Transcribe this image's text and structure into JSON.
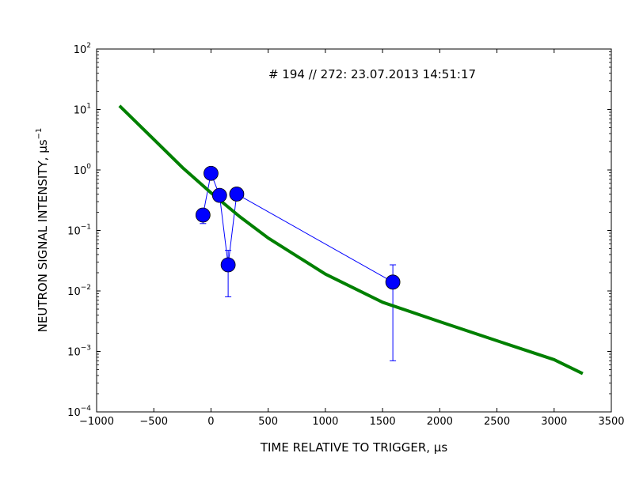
{
  "chart_data": {
    "type": "scatter",
    "title": "# 194 // 272: 23.07.2013 14:51:17",
    "xlabel": "TIME RELATIVE TO TRIGGER, μs",
    "ylabel_main": "NEUTRON SIGNAL INTENSITY, μs",
    "ylabel_exp": "−1",
    "xlim": [
      -1000,
      3500
    ],
    "ylim": [
      0.0001,
      100
    ],
    "yscale": "log",
    "grid": false,
    "x_ticks": [
      -1000,
      -500,
      0,
      500,
      1000,
      1500,
      2000,
      2500,
      3000,
      3500
    ],
    "x_tick_labels": [
      "−1000",
      "−500",
      "0",
      "500",
      "1000",
      "1500",
      "2000",
      "2500",
      "3000",
      "3500"
    ],
    "y_ticks": [
      {
        "value": 0.0001,
        "base": "10",
        "exp": "−4"
      },
      {
        "value": 0.001,
        "base": "10",
        "exp": "−3"
      },
      {
        "value": 0.01,
        "base": "10",
        "exp": "−2"
      },
      {
        "value": 0.1,
        "base": "10",
        "exp": "−1"
      },
      {
        "value": 1,
        "base": "10",
        "exp": "0"
      },
      {
        "value": 10,
        "base": "10",
        "exp": "1"
      },
      {
        "value": 100,
        "base": "10",
        "exp": "2"
      }
    ],
    "series": [
      {
        "kind": "measured",
        "color": "#0000ff",
        "points": [
          {
            "x": -70,
            "y": 0.18,
            "yerr_low": 0.13,
            "yerr_high": 0.18
          },
          {
            "x": 0,
            "y": 0.88,
            "yerr_low": 0.88,
            "yerr_high": 0.88
          },
          {
            "x": 75,
            "y": 0.38,
            "yerr_low": 0.38,
            "yerr_high": 0.38
          },
          {
            "x": 150,
            "y": 0.027,
            "yerr_low": 0.008,
            "yerr_high": 0.047
          },
          {
            "x": 225,
            "y": 0.4,
            "yerr_low": 0.4,
            "yerr_high": 0.4
          },
          {
            "x": 1590,
            "y": 0.014,
            "yerr_low": 0.0007,
            "yerr_high": 0.027
          }
        ]
      },
      {
        "kind": "fit",
        "color": "#008000",
        "x": [
          -800,
          -500,
          -250,
          0,
          250,
          500,
          1000,
          1500,
          2000,
          2500,
          3000,
          3250
        ],
        "y": [
          11.5,
          3.2,
          1.1,
          0.42,
          0.17,
          0.075,
          0.019,
          0.0065,
          0.0031,
          0.0015,
          0.00073,
          0.00043
        ]
      }
    ]
  }
}
